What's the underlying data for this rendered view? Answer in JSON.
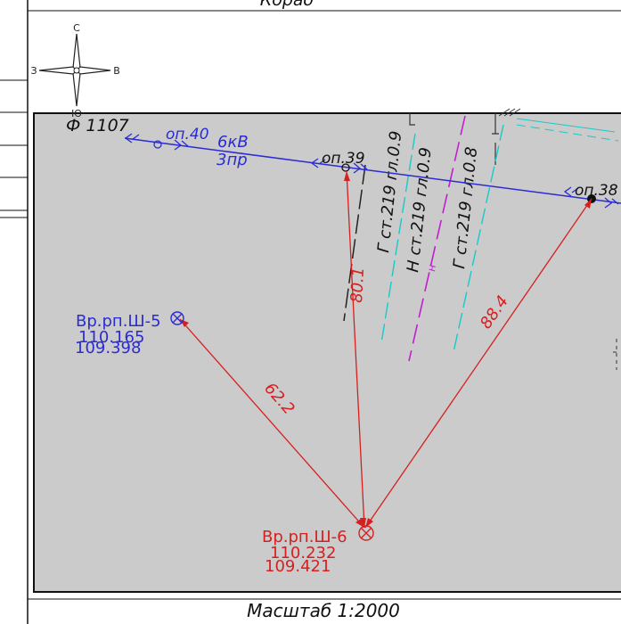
{
  "sheet": {
    "header_text": "Кораб",
    "footer_scale": "Масштаб 1:2000"
  },
  "compass": {
    "north": "С",
    "south": "Ю",
    "west": "З",
    "east": "В"
  },
  "power_line": {
    "feeder": "Ф 1107",
    "voltage": "6кВ",
    "wires": "3пр",
    "poles": [
      "оп.40",
      "оп.39",
      "оп.38"
    ]
  },
  "pipelines": [
    {
      "label": "Г ст.219 гл.0.9"
    },
    {
      "label": "Н ст.219 гл.0.9",
      "marker": "н"
    },
    {
      "label": "Г ст.219 гл.0.8"
    }
  ],
  "benchmarks": [
    {
      "name": "Вр.рп.Ш-5",
      "elev1": "110.165",
      "elev2": "109.398"
    },
    {
      "name": "Вр.рп.Ш-6",
      "elev1": "110.232",
      "elev2": "109.421"
    }
  ],
  "measurements": [
    "62.2",
    "80.1",
    "88.4"
  ],
  "colors": {
    "map_bg": "#cbcbcb",
    "blue": "#2b2bd6",
    "red": "#d62020",
    "cyan": "#17c9c9",
    "magenta": "#c21ed1",
    "black": "#111111"
  }
}
